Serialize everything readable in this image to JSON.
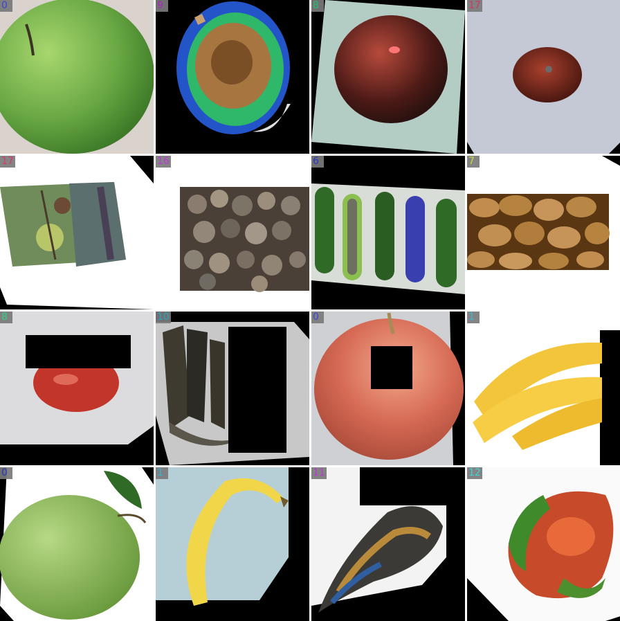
{
  "tiles": [
    {
      "label": "0",
      "label_color": "#2a3bd6",
      "subject": "green-apple"
    },
    {
      "label": "9",
      "label_color": "#b52ad6",
      "subject": "false-color-fruit"
    },
    {
      "label": "8",
      "label_color": "#25d17d",
      "subject": "dark-tomato"
    },
    {
      "label": "17",
      "label_color": "#d62a5a",
      "subject": "small-tomato"
    },
    {
      "label": "17",
      "label_color": "#d62a5a",
      "subject": "rotting-plant-fruit"
    },
    {
      "label": "16",
      "label_color": "#b52ad6",
      "subject": "dried-tubers"
    },
    {
      "label": "6",
      "label_color": "#2a3bd6",
      "subject": "cucumbers"
    },
    {
      "label": "7",
      "label_color": "#c8d62a",
      "subject": "potatoes"
    },
    {
      "label": "8",
      "label_color": "#25d17d",
      "subject": "tomato-occluded"
    },
    {
      "label": "10",
      "label_color": "#2ab3d6",
      "subject": "black-bananas"
    },
    {
      "label": "0",
      "label_color": "#2a3bd6",
      "subject": "red-apple"
    },
    {
      "label": "1",
      "label_color": "#2ab3d6",
      "subject": "yellow-bananas"
    },
    {
      "label": "0",
      "label_color": "#2a3bd6",
      "subject": "green-apple-leaf"
    },
    {
      "label": "1",
      "label_color": "#2ab3d6",
      "subject": "single-banana"
    },
    {
      "label": "11",
      "label_color": "#b52ad6",
      "subject": "moldy-gourd"
    },
    {
      "label": "12",
      "label_color": "#2ad6d6",
      "subject": "pepper"
    }
  ]
}
